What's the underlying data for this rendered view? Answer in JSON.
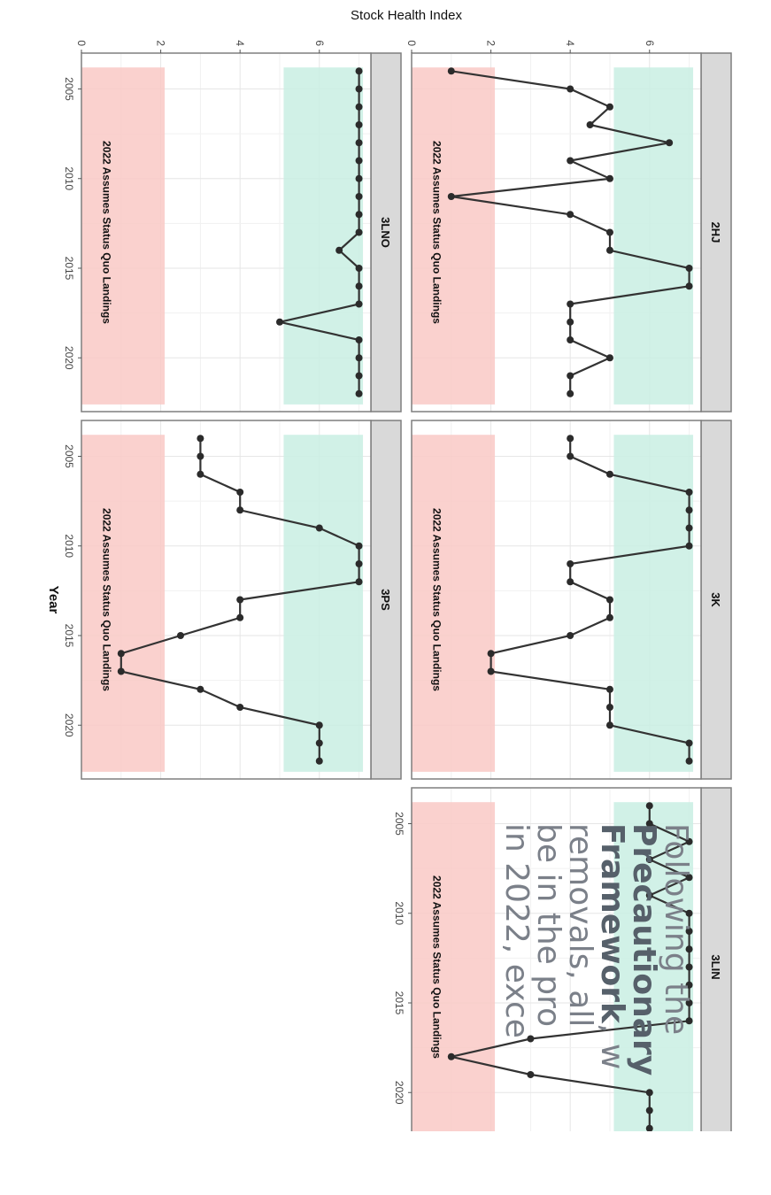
{
  "chart_data": {
    "type": "line",
    "ylabel": "Stock Health Index",
    "xlabel": "Year",
    "xlim": [
      2003,
      2023
    ],
    "ylim": [
      0,
      7.3
    ],
    "x_ticks": [
      2005,
      2010,
      2015,
      2020
    ],
    "y_ticks": [
      0,
      2,
      4,
      6
    ],
    "bands": {
      "critical": {
        "range": [
          0,
          2.1
        ],
        "color": "#f9c9c5"
      },
      "healthy": {
        "range": [
          5.1,
          7.1
        ],
        "color": "#c9efe3"
      }
    },
    "annotation": "2022 Assumes Status Quo Landings",
    "panels": [
      {
        "name": "2HJ",
        "x": [
          2004,
          2005,
          2006,
          2007,
          2008,
          2009,
          2010,
          2011,
          2012,
          2013,
          2014,
          2015,
          2016,
          2017,
          2018,
          2019,
          2020,
          2021,
          2022
        ],
        "y": [
          1,
          4,
          5,
          4.5,
          6.5,
          4,
          5,
          1,
          4,
          5,
          5,
          7,
          7,
          4,
          4,
          4,
          5,
          4,
          4
        ]
      },
      {
        "name": "3K",
        "x": [
          2004,
          2005,
          2006,
          2007,
          2008,
          2009,
          2010,
          2011,
          2012,
          2013,
          2014,
          2015,
          2016,
          2017,
          2018,
          2019,
          2020,
          2021,
          2022
        ],
        "y": [
          4,
          4,
          5,
          7,
          7,
          7,
          7,
          4,
          4,
          5,
          5,
          4,
          2,
          2,
          5,
          5,
          5,
          7,
          7
        ]
      },
      {
        "name": "3LIN",
        "x": [
          2004,
          2005,
          2006,
          2007,
          2008,
          2009,
          2010,
          2011,
          2012,
          2013,
          2014,
          2015,
          2016,
          2017,
          2018,
          2019,
          2020,
          2021,
          2022
        ],
        "y": [
          6,
          6,
          7,
          6,
          7,
          6,
          7,
          7,
          7,
          7,
          7,
          7,
          7,
          3,
          1,
          3,
          6,
          6,
          6
        ]
      },
      {
        "name": "3LNO",
        "x": [
          2004,
          2005,
          2006,
          2007,
          2008,
          2009,
          2010,
          2011,
          2012,
          2013,
          2014,
          2015,
          2016,
          2017,
          2018,
          2019,
          2020,
          2021,
          2022
        ],
        "y": [
          7,
          7,
          7,
          7,
          7,
          7,
          7,
          7,
          7,
          7,
          6.5,
          7,
          7,
          7,
          5,
          7,
          7,
          7,
          7
        ]
      },
      {
        "name": "3PS",
        "x": [
          2004,
          2005,
          2006,
          2007,
          2008,
          2009,
          2010,
          2011,
          2012,
          2013,
          2014,
          2015,
          2016,
          2017,
          2018,
          2019,
          2020,
          2021,
          2022
        ],
        "y": [
          3,
          3,
          3,
          4,
          4,
          6,
          7,
          7,
          7,
          4,
          4,
          2.5,
          1,
          1,
          3,
          4,
          6,
          6,
          6
        ]
      }
    ]
  },
  "slide_text": {
    "line1": "Following the",
    "line2": "Precautionary",
    "line3_bold": "Framework",
    "line3_rest": ", w",
    "line4": "removals, all",
    "line5": "be in the pro",
    "line6": "in 2022, exce"
  }
}
